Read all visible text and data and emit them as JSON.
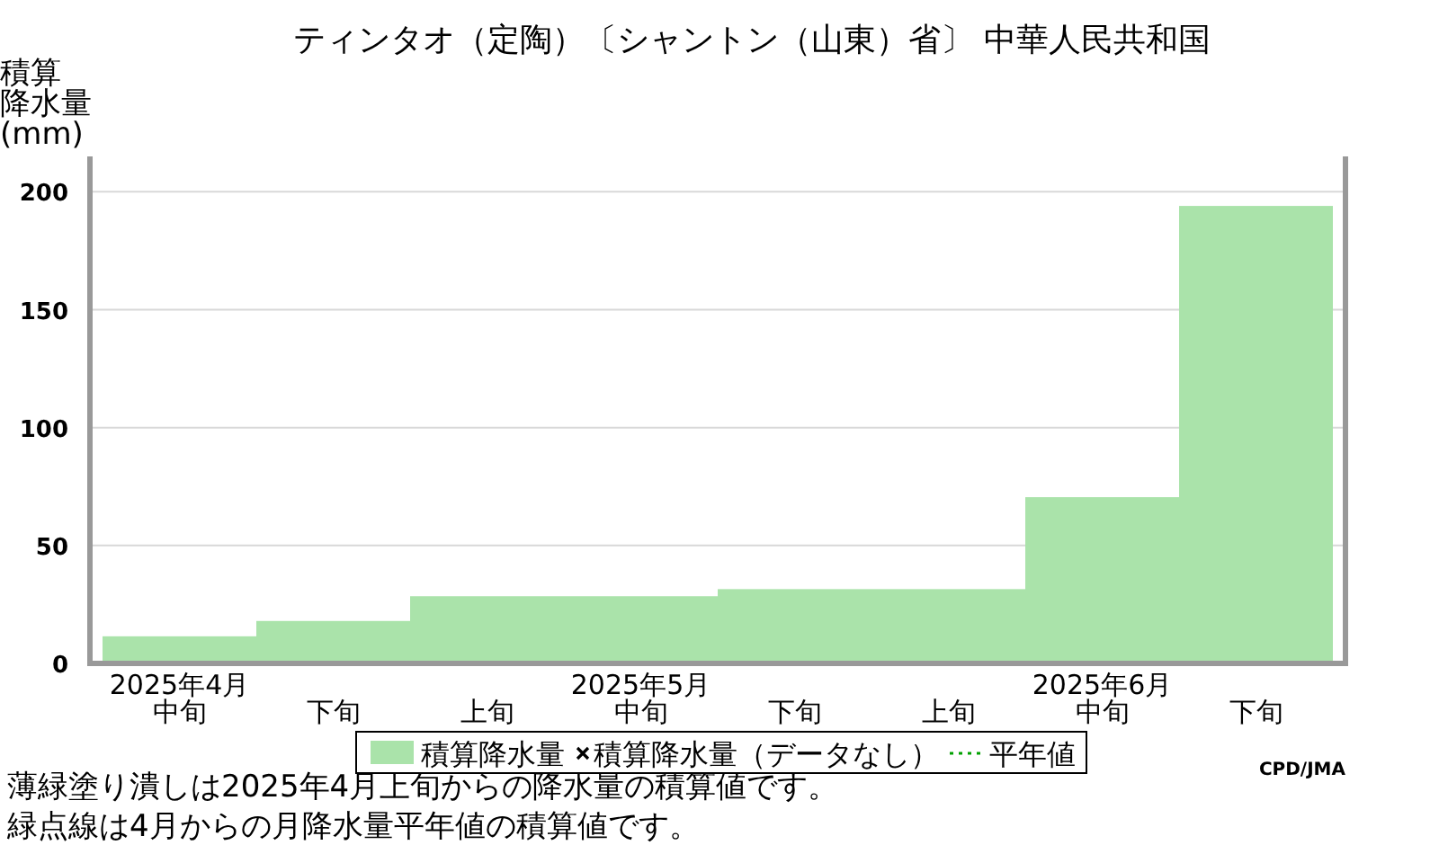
{
  "chart_data": {
    "type": "bar",
    "title": "ティンタオ（定陶）〔シャントン（山東）省〕 中華人民共和国",
    "ylabel": "積算降水量(mm)",
    "categories": [
      "中旬",
      "下旬",
      "上旬",
      "中旬",
      "下旬",
      "上旬",
      "中旬",
      "下旬"
    ],
    "series": [
      {
        "name": "積算降水量",
        "color": "#aae3aa",
        "values": [
          11.5,
          18,
          28.5,
          28.5,
          31.5,
          31.5,
          70.5,
          194
        ]
      },
      {
        "name": "積算降水量（データなし）",
        "type": "scatter",
        "marker": "cross",
        "color": "#000000",
        "values": [
          null,
          null,
          null,
          null,
          null,
          null,
          null,
          null
        ]
      },
      {
        "name": "平年値",
        "type": "line",
        "line_style": "dotted",
        "color": "#00a000",
        "values": [
          null,
          null,
          null,
          null,
          null,
          null,
          null,
          null
        ]
      }
    ],
    "ylim": [
      0,
      215
    ],
    "yticks": [
      0,
      50,
      100,
      150,
      200
    ],
    "grid": "y",
    "legend": "bottom",
    "annotations": [
      "2025年4月",
      "2025年5月",
      "2025年6月",
      "CPD/JMA",
      "薄緑塗り潰しは2025年4月上旬からの降水量の積算値です。",
      "緑点線は4月からの月降水量平年値の積算値です。"
    ]
  }
}
